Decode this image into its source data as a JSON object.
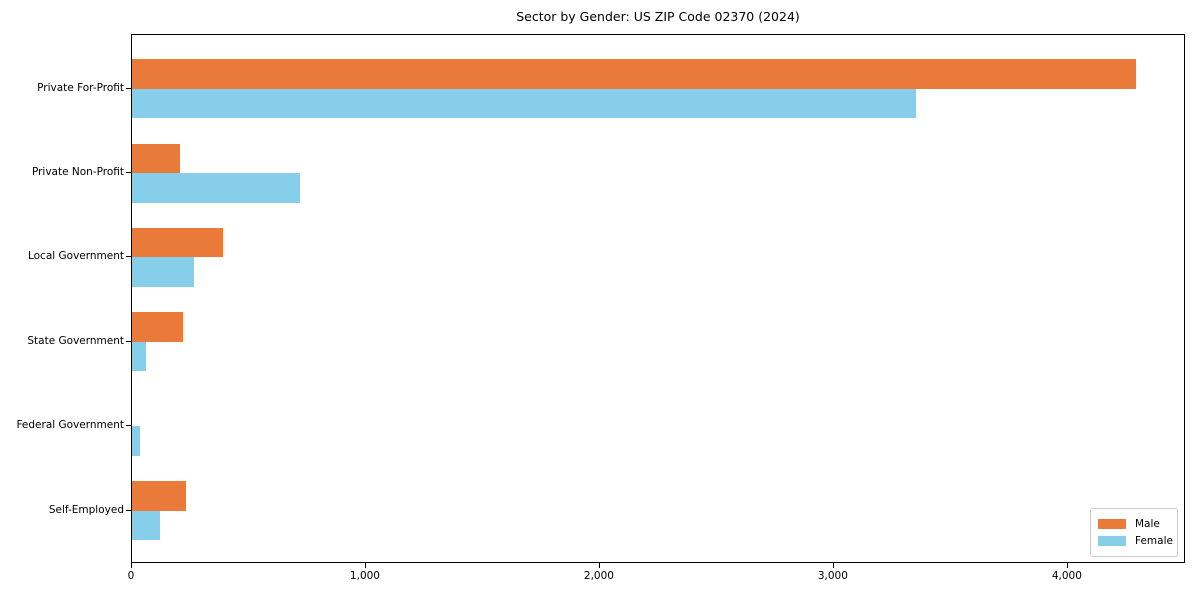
{
  "chart_data": {
    "type": "bar",
    "orientation": "horizontal",
    "title": "Sector by Gender: US ZIP Code 02370 (2024)",
    "categories": [
      "Private For-Profit",
      "Private Non-Profit",
      "Local Government",
      "State Government",
      "Federal Government",
      "Self-Employed"
    ],
    "series": [
      {
        "name": "Male",
        "color": "#E97A3A",
        "values": [
          4290,
          205,
          390,
          220,
          0,
          230
        ]
      },
      {
        "name": "Female",
        "color": "#87CEEB",
        "values": [
          3350,
          720,
          265,
          60,
          35,
          120
        ]
      }
    ],
    "xlabel": "",
    "ylabel": "",
    "xlim": [
      0,
      4505
    ],
    "xticks": [
      0,
      1000,
      2000,
      3000,
      4000
    ],
    "xtick_labels": [
      "0",
      "1,000",
      "2,000",
      "3,000",
      "4,000"
    ],
    "legend_position": "lower right",
    "grid": false,
    "background_color": "#ffffff",
    "text_color": "#000000"
  }
}
